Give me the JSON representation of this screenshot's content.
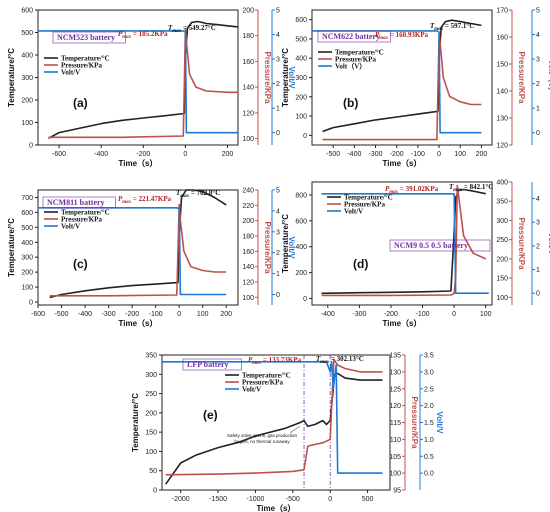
{
  "colors": {
    "temperature": "#222222",
    "pressure": "#c0504d",
    "volt": "#1f78d1",
    "battery_label": "#7030a0",
    "pmax": "#b22222"
  },
  "legend": {
    "temperature": "Temperature/°C",
    "pressure": "Pressure/KPa",
    "volt": "Volt/V"
  },
  "chart_data": [
    {
      "id": "a",
      "type": "line",
      "panel_label": "(a)",
      "battery_label": "NCM523 battery",
      "pmax_label": "P",
      "pmax_sub": "max",
      "pmax_value": " = 185.2KPa",
      "tmax_label": "T",
      "tmax_sub": "max",
      "tmax_value": " = 549.27°C",
      "legend_items": [
        "Temperature/°C",
        "Pressure/KPa",
        "Volt/V"
      ],
      "xlabel": "Time（s）",
      "ylabel_left": "Temperature/°C",
      "ylabel_right1": "Pressure/KPa",
      "ylabel_right2": "Volt/V",
      "xlim": [
        -700,
        250
      ],
      "xticks": [
        -600,
        -400,
        -200,
        0,
        200
      ],
      "ylim_left": [
        0,
        600
      ],
      "yticks_left": [
        0,
        100,
        200,
        300,
        400,
        500,
        600
      ],
      "ylim_right1": [
        95,
        200
      ],
      "yticks_right1": [
        100,
        120,
        140,
        160,
        180,
        200
      ],
      "ylim_right2": [
        -0.5,
        5
      ],
      "yticks_right2": [
        0,
        1,
        2,
        3,
        4,
        5
      ],
      "series": [
        {
          "name": "Temperature/°C",
          "axis": "left",
          "x": [
            -650,
            -600,
            -500,
            -400,
            -300,
            -200,
            -100,
            -5,
            0,
            10,
            30,
            60,
            100,
            150,
            200,
            250
          ],
          "y": [
            30,
            55,
            75,
            95,
            110,
            120,
            130,
            140,
            400,
            520,
            545,
            549,
            540,
            535,
            530,
            525
          ]
        },
        {
          "name": "Pressure/KPa",
          "axis": "left2",
          "x": [
            -650,
            -300,
            -10,
            0,
            5,
            20,
            50,
            100,
            200,
            250
          ],
          "y": [
            101,
            101,
            102,
            185,
            175,
            150,
            140,
            137,
            136,
            136
          ]
        },
        {
          "name": "Volt/V",
          "axis": "right2",
          "x": [
            -700,
            -10,
            0,
            5,
            250
          ],
          "y": [
            4.15,
            4.15,
            4.1,
            0,
            0
          ]
        }
      ]
    },
    {
      "id": "b",
      "type": "line",
      "panel_label": "(b)",
      "battery_label": "NCM622 battery",
      "pmax_label": "P",
      "pmax_sub": "max",
      "pmax_value": " = 160.93KPa",
      "tmax_label": "T",
      "tmax_sub": "max",
      "tmax_value": " = 597.1°C",
      "legend_items": [
        "Temperature/°C",
        "Pressure/KPa",
        "Volt（V）"
      ],
      "xlabel": "Time（s）",
      "ylabel_left": "Temperature/°C",
      "ylabel_right1": "Pressure/KPa",
      "ylabel_right2": "Volt（V）",
      "xlim": [
        -600,
        250
      ],
      "xticks": [
        -500,
        -400,
        -300,
        -200,
        -100,
        0,
        100,
        200
      ],
      "ylim_left": [
        -50,
        650
      ],
      "yticks_left": [
        0,
        100,
        200,
        300,
        400,
        500,
        600
      ],
      "ylim_right1": [
        120,
        170
      ],
      "yticks_right1": [
        120,
        130,
        140,
        150,
        160,
        170
      ],
      "ylim_right2": [
        -0.5,
        5
      ],
      "yticks_right2": [
        0,
        1,
        2,
        3,
        4,
        5
      ],
      "series": [
        {
          "name": "Temperature/°C",
          "axis": "left",
          "x": [
            -550,
            -500,
            -400,
            -300,
            -200,
            -100,
            -5,
            0,
            10,
            30,
            60,
            100,
            150,
            200
          ],
          "y": [
            20,
            40,
            60,
            80,
            95,
            110,
            125,
            400,
            560,
            590,
            597,
            590,
            580,
            570
          ]
        },
        {
          "name": "Pressure/KPa",
          "axis": "left2",
          "x": [
            -550,
            -300,
            -10,
            0,
            5,
            20,
            50,
            100,
            150,
            200
          ],
          "y": [
            122,
            122,
            122,
            161,
            158,
            145,
            138,
            136,
            135,
            135
          ]
        },
        {
          "name": "Volt（V）",
          "axis": "right2",
          "x": [
            -600,
            -10,
            0,
            5,
            200
          ],
          "y": [
            4.15,
            4.15,
            4.1,
            0,
            0
          ]
        }
      ]
    },
    {
      "id": "c",
      "type": "line",
      "panel_label": "(c)",
      "battery_label": "NCM811 battery",
      "pmax_label": "P",
      "pmax_sub": "max",
      "pmax_value": " = 221.47KPa",
      "tmax_label": "T",
      "tmax_sub": "max",
      "tmax_value": " = 762.8°C",
      "legend_items": [
        "Temperature/°C",
        "Pressure/KPa",
        "Volt/V"
      ],
      "xlabel": "Time（s）",
      "ylabel_left": "Temperature/°C",
      "ylabel_right1": "Pressure/KPa",
      "ylabel_right2": "Volt/V",
      "xlim": [
        -600,
        250
      ],
      "xticks": [
        -600,
        -500,
        -400,
        -300,
        -200,
        -100,
        0,
        100,
        200
      ],
      "ylim_left": [
        -20,
        750
      ],
      "yticks_left": [
        0,
        100,
        200,
        300,
        400,
        500,
        600,
        700
      ],
      "ylim_right1": [
        90,
        240
      ],
      "yticks_right1": [
        100,
        120,
        140,
        160,
        180,
        200,
        220,
        240
      ],
      "ylim_right2": [
        -0.5,
        5
      ],
      "yticks_right2": [
        0,
        1,
        2,
        3,
        4,
        5
      ],
      "series": [
        {
          "name": "Temperature/°C",
          "axis": "left",
          "x": [
            -550,
            -500,
            -400,
            -300,
            -200,
            -100,
            -5,
            0,
            10,
            30,
            60,
            100,
            150,
            200
          ],
          "y": [
            30,
            50,
            75,
            95,
            110,
            120,
            130,
            450,
            700,
            760,
            762,
            740,
            700,
            650
          ]
        },
        {
          "name": "Pressure/KPa",
          "axis": "left2",
          "x": [
            -550,
            -300,
            -10,
            0,
            5,
            20,
            50,
            100,
            150,
            200
          ],
          "y": [
            102,
            102,
            103,
            221,
            200,
            160,
            140,
            135,
            133,
            133
          ]
        },
        {
          "name": "Volt/V",
          "axis": "right2",
          "x": [
            -600,
            -10,
            0,
            5,
            200
          ],
          "y": [
            4.15,
            4.15,
            4.1,
            0,
            0
          ]
        }
      ]
    },
    {
      "id": "d",
      "type": "line",
      "panel_label": "(d)",
      "battery_label": "NCM9 0.5 0.5 battery",
      "pmax_label": "P",
      "pmax_sub": "max",
      "pmax_value": " = 391.02KPa",
      "tmax_label": "T",
      "tmax_sub": "max",
      "tmax_value": " = 842.1°C",
      "legend_items": [
        "Temperature/°C",
        "Pressure/KPa",
        "Volt/V"
      ],
      "xlabel": "Time（s）",
      "ylabel_left": "Temperature/°C",
      "ylabel_right1": "Pressure/KPa",
      "ylabel_right2": "Volt/V",
      "xlim": [
        -450,
        120
      ],
      "xticks": [
        -400,
        -300,
        -200,
        -100,
        0,
        100
      ],
      "ylim_left": [
        -50,
        900
      ],
      "yticks_left": [
        0,
        200,
        400,
        600,
        800
      ],
      "ylim_right1": [
        80,
        400
      ],
      "yticks_right1": [
        100,
        150,
        200,
        250,
        300,
        350,
        400
      ],
      "ylim_right2": [
        -0.5,
        4.7
      ],
      "yticks_right2": [
        0,
        1,
        2,
        3,
        4
      ],
      "series": [
        {
          "name": "Temperature/°C",
          "axis": "left",
          "x": [
            -420,
            -300,
            -200,
            -100,
            -10,
            0,
            5,
            15,
            30,
            60,
            100
          ],
          "y": [
            40,
            45,
            48,
            52,
            58,
            500,
            780,
            835,
            842,
            830,
            810
          ]
        },
        {
          "name": "Pressure/KPa",
          "axis": "left2",
          "x": [
            -420,
            -200,
            -10,
            0,
            5,
            10,
            30,
            60,
            100
          ],
          "y": [
            105,
            105,
            106,
            110,
            150,
            391,
            260,
            215,
            200
          ]
        },
        {
          "name": "Volt/V",
          "axis": "right2",
          "x": [
            -420,
            -10,
            0,
            5,
            110
          ],
          "y": [
            4.2,
            4.2,
            4.2,
            0,
            0
          ]
        }
      ]
    },
    {
      "id": "e",
      "type": "line",
      "panel_label": "(e)",
      "battery_label": "LFP battery",
      "pmax_label": "P",
      "pmax_sub": "max",
      "pmax_value": " = 133.73KPa",
      "tmax_label": "T",
      "tmax_sub": "max",
      "tmax_value": " = 302.13°C",
      "legend_items": [
        "Temperature/°C",
        "Pressure/KPa",
        "Volt/V"
      ],
      "annotation": "Safety valve opens, gas production begins, no thermal runaway",
      "xlabel": "Time（s）",
      "ylabel_left": "Temperature/°C",
      "ylabel_right1": "Pressure/KPa",
      "ylabel_right2": "Volt/V",
      "xlim": [
        -2250,
        800
      ],
      "xticks": [
        -2000,
        -1500,
        -1000,
        -500,
        0,
        500
      ],
      "ylim_left": [
        0,
        350
      ],
      "yticks_left": [
        0,
        50,
        100,
        150,
        200,
        250,
        300,
        350
      ],
      "ylim_right1": [
        95,
        135
      ],
      "yticks_right1": [
        95,
        100,
        105,
        110,
        115,
        120,
        125,
        130,
        135
      ],
      "ylim_right2": [
        -0.5,
        3.5
      ],
      "yticks_right2": [
        0.0,
        0.5,
        1.0,
        1.5,
        2.0,
        2.5,
        3.0,
        3.5
      ],
      "series": [
        {
          "name": "Temperature/°C",
          "axis": "left",
          "x": [
            -2200,
            -2000,
            -1800,
            -1500,
            -1200,
            -1000,
            -800,
            -600,
            -400,
            -350,
            -300,
            -200,
            -100,
            -50,
            0,
            30,
            60,
            100,
            200,
            400,
            700
          ],
          "y": [
            15,
            70,
            90,
            110,
            125,
            140,
            150,
            160,
            175,
            180,
            165,
            170,
            180,
            170,
            180,
            240,
            300,
            302,
            290,
            285,
            285
          ]
        },
        {
          "name": "Pressure/KPa",
          "axis": "left2",
          "x": [
            -2200,
            -1500,
            -1000,
            -500,
            -350,
            -300,
            -200,
            -100,
            0,
            20,
            50,
            100,
            200,
            400,
            700
          ],
          "y": [
            99.5,
            99.7,
            100,
            100.5,
            101,
            108,
            108.5,
            109,
            110,
            120,
            133.7,
            132,
            131,
            130,
            130
          ]
        },
        {
          "name": "Volt/V",
          "axis": "right2",
          "x": [
            -2250,
            -50,
            0,
            20,
            40,
            80,
            100,
            700
          ],
          "y": [
            3.3,
            3.3,
            3.0,
            3.3,
            2.5,
            3.2,
            0,
            0
          ]
        }
      ],
      "ref_lines_x": [
        -350,
        0
      ]
    }
  ]
}
